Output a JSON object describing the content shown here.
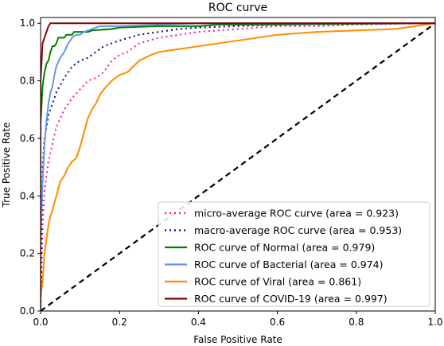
{
  "chart_data": {
    "type": "line",
    "title": "ROC curve",
    "xlabel": "False Positive Rate",
    "ylabel": "True Positive Rate",
    "xlim": [
      0,
      1
    ],
    "ylim": [
      0,
      1.02
    ],
    "xticks": [
      "0.0",
      "0.2",
      "0.4",
      "0.6",
      "0.8",
      "1.0"
    ],
    "yticks": [
      "0.0",
      "0.2",
      "0.4",
      "0.6",
      "0.8",
      "1.0"
    ],
    "xtick_values": [
      0,
      0.2,
      0.4,
      0.6,
      0.8,
      1.0
    ],
    "ytick_values": [
      0,
      0.2,
      0.4,
      0.6,
      0.8,
      1.0
    ],
    "grid": false,
    "legend_position": "lower-right",
    "series": [
      {
        "name": "micro-average ROC curve (area = 0.923)",
        "color": "#ff1493",
        "style": "dotted",
        "points": [
          [
            0,
            0
          ],
          [
            0.005,
            0.3
          ],
          [
            0.01,
            0.42
          ],
          [
            0.02,
            0.52
          ],
          [
            0.03,
            0.58
          ],
          [
            0.04,
            0.64
          ],
          [
            0.05,
            0.67
          ],
          [
            0.06,
            0.7
          ],
          [
            0.08,
            0.74
          ],
          [
            0.1,
            0.77
          ],
          [
            0.12,
            0.8
          ],
          [
            0.14,
            0.81
          ],
          [
            0.16,
            0.83
          ],
          [
            0.18,
            0.87
          ],
          [
            0.2,
            0.89
          ],
          [
            0.22,
            0.9
          ],
          [
            0.25,
            0.93
          ],
          [
            0.3,
            0.95
          ],
          [
            0.35,
            0.96
          ],
          [
            0.4,
            0.97
          ],
          [
            0.5,
            0.98
          ],
          [
            0.6,
            0.99
          ],
          [
            0.7,
            0.99
          ],
          [
            0.8,
            0.995
          ],
          [
            0.9,
            0.998
          ],
          [
            1.0,
            1.0
          ]
        ]
      },
      {
        "name": "macro-average ROC curve (area = 0.953)",
        "color": "#000080",
        "style": "dotted",
        "points": [
          [
            0,
            0
          ],
          [
            0.005,
            0.5
          ],
          [
            0.01,
            0.6
          ],
          [
            0.02,
            0.68
          ],
          [
            0.04,
            0.76
          ],
          [
            0.06,
            0.81
          ],
          [
            0.08,
            0.85
          ],
          [
            0.1,
            0.87
          ],
          [
            0.12,
            0.88
          ],
          [
            0.14,
            0.9
          ],
          [
            0.16,
            0.92
          ],
          [
            0.2,
            0.94
          ],
          [
            0.25,
            0.96
          ],
          [
            0.3,
            0.97
          ],
          [
            0.35,
            0.98
          ],
          [
            0.4,
            0.985
          ],
          [
            0.5,
            0.99
          ],
          [
            0.6,
            0.995
          ],
          [
            0.8,
            0.998
          ],
          [
            1.0,
            1.0
          ]
        ]
      },
      {
        "name": "ROC curve of Normal (area = 0.979)",
        "color": "#008000",
        "style": "solid",
        "points": [
          [
            0,
            0
          ],
          [
            0,
            0.65
          ],
          [
            0.005,
            0.78
          ],
          [
            0.01,
            0.83
          ],
          [
            0.015,
            0.86
          ],
          [
            0.02,
            0.87
          ],
          [
            0.025,
            0.9
          ],
          [
            0.03,
            0.92
          ],
          [
            0.035,
            0.92
          ],
          [
            0.04,
            0.93
          ],
          [
            0.045,
            0.95
          ],
          [
            0.05,
            0.95
          ],
          [
            0.06,
            0.95
          ],
          [
            0.065,
            0.96
          ],
          [
            0.08,
            0.96
          ],
          [
            0.085,
            0.97
          ],
          [
            0.12,
            0.97
          ],
          [
            0.13,
            0.975
          ],
          [
            0.18,
            0.98
          ],
          [
            0.2,
            0.985
          ],
          [
            0.3,
            0.99
          ],
          [
            0.4,
            0.99
          ],
          [
            0.45,
            0.995
          ],
          [
            0.6,
            0.995
          ],
          [
            0.8,
            0.998
          ],
          [
            1.0,
            1.0
          ]
        ]
      },
      {
        "name": "ROC curve of Bacterial (area = 0.974)",
        "color": "#6495ed",
        "style": "solid",
        "points": [
          [
            0,
            0
          ],
          [
            0,
            0.25
          ],
          [
            0.005,
            0.45
          ],
          [
            0.01,
            0.58
          ],
          [
            0.015,
            0.66
          ],
          [
            0.02,
            0.72
          ],
          [
            0.025,
            0.76
          ],
          [
            0.03,
            0.78
          ],
          [
            0.035,
            0.82
          ],
          [
            0.04,
            0.85
          ],
          [
            0.05,
            0.88
          ],
          [
            0.06,
            0.9
          ],
          [
            0.07,
            0.93
          ],
          [
            0.08,
            0.95
          ],
          [
            0.09,
            0.96
          ],
          [
            0.1,
            0.96
          ],
          [
            0.11,
            0.97
          ],
          [
            0.13,
            0.98
          ],
          [
            0.15,
            0.99
          ],
          [
            0.2,
            0.99
          ],
          [
            0.3,
            0.995
          ],
          [
            0.4,
            1.0
          ],
          [
            1.0,
            1.0
          ]
        ]
      },
      {
        "name": "ROC curve of Viral (area = 0.861)",
        "color": "#ff8c00",
        "style": "solid",
        "points": [
          [
            0,
            0
          ],
          [
            0,
            0.05
          ],
          [
            0.005,
            0.1
          ],
          [
            0.01,
            0.2
          ],
          [
            0.015,
            0.25
          ],
          [
            0.02,
            0.3
          ],
          [
            0.025,
            0.33
          ],
          [
            0.03,
            0.35
          ],
          [
            0.04,
            0.4
          ],
          [
            0.05,
            0.45
          ],
          [
            0.06,
            0.47
          ],
          [
            0.07,
            0.5
          ],
          [
            0.08,
            0.52
          ],
          [
            0.09,
            0.53
          ],
          [
            0.1,
            0.57
          ],
          [
            0.11,
            0.62
          ],
          [
            0.12,
            0.67
          ],
          [
            0.13,
            0.7
          ],
          [
            0.14,
            0.72
          ],
          [
            0.15,
            0.75
          ],
          [
            0.16,
            0.77
          ],
          [
            0.18,
            0.8
          ],
          [
            0.2,
            0.82
          ],
          [
            0.22,
            0.83
          ],
          [
            0.25,
            0.87
          ],
          [
            0.28,
            0.89
          ],
          [
            0.3,
            0.9
          ],
          [
            0.35,
            0.91
          ],
          [
            0.4,
            0.92
          ],
          [
            0.5,
            0.94
          ],
          [
            0.6,
            0.96
          ],
          [
            0.7,
            0.97
          ],
          [
            0.8,
            0.975
          ],
          [
            0.9,
            0.98
          ],
          [
            0.95,
            0.99
          ],
          [
            1.0,
            1.0
          ]
        ]
      },
      {
        "name": "ROC curve of COVID-19 (area = 0.997)",
        "color": "#8b0000",
        "style": "solid",
        "points": [
          [
            0,
            0
          ],
          [
            0,
            0.8
          ],
          [
            0.005,
            0.93
          ],
          [
            0.01,
            0.95
          ],
          [
            0.015,
            0.97
          ],
          [
            0.02,
            0.99
          ],
          [
            0.025,
            1.0
          ],
          [
            1.0,
            1.0
          ]
        ]
      }
    ],
    "reference_line": {
      "points": [
        [
          0,
          0
        ],
        [
          1,
          1
        ]
      ],
      "color": "#000000",
      "style": "dashed"
    }
  }
}
